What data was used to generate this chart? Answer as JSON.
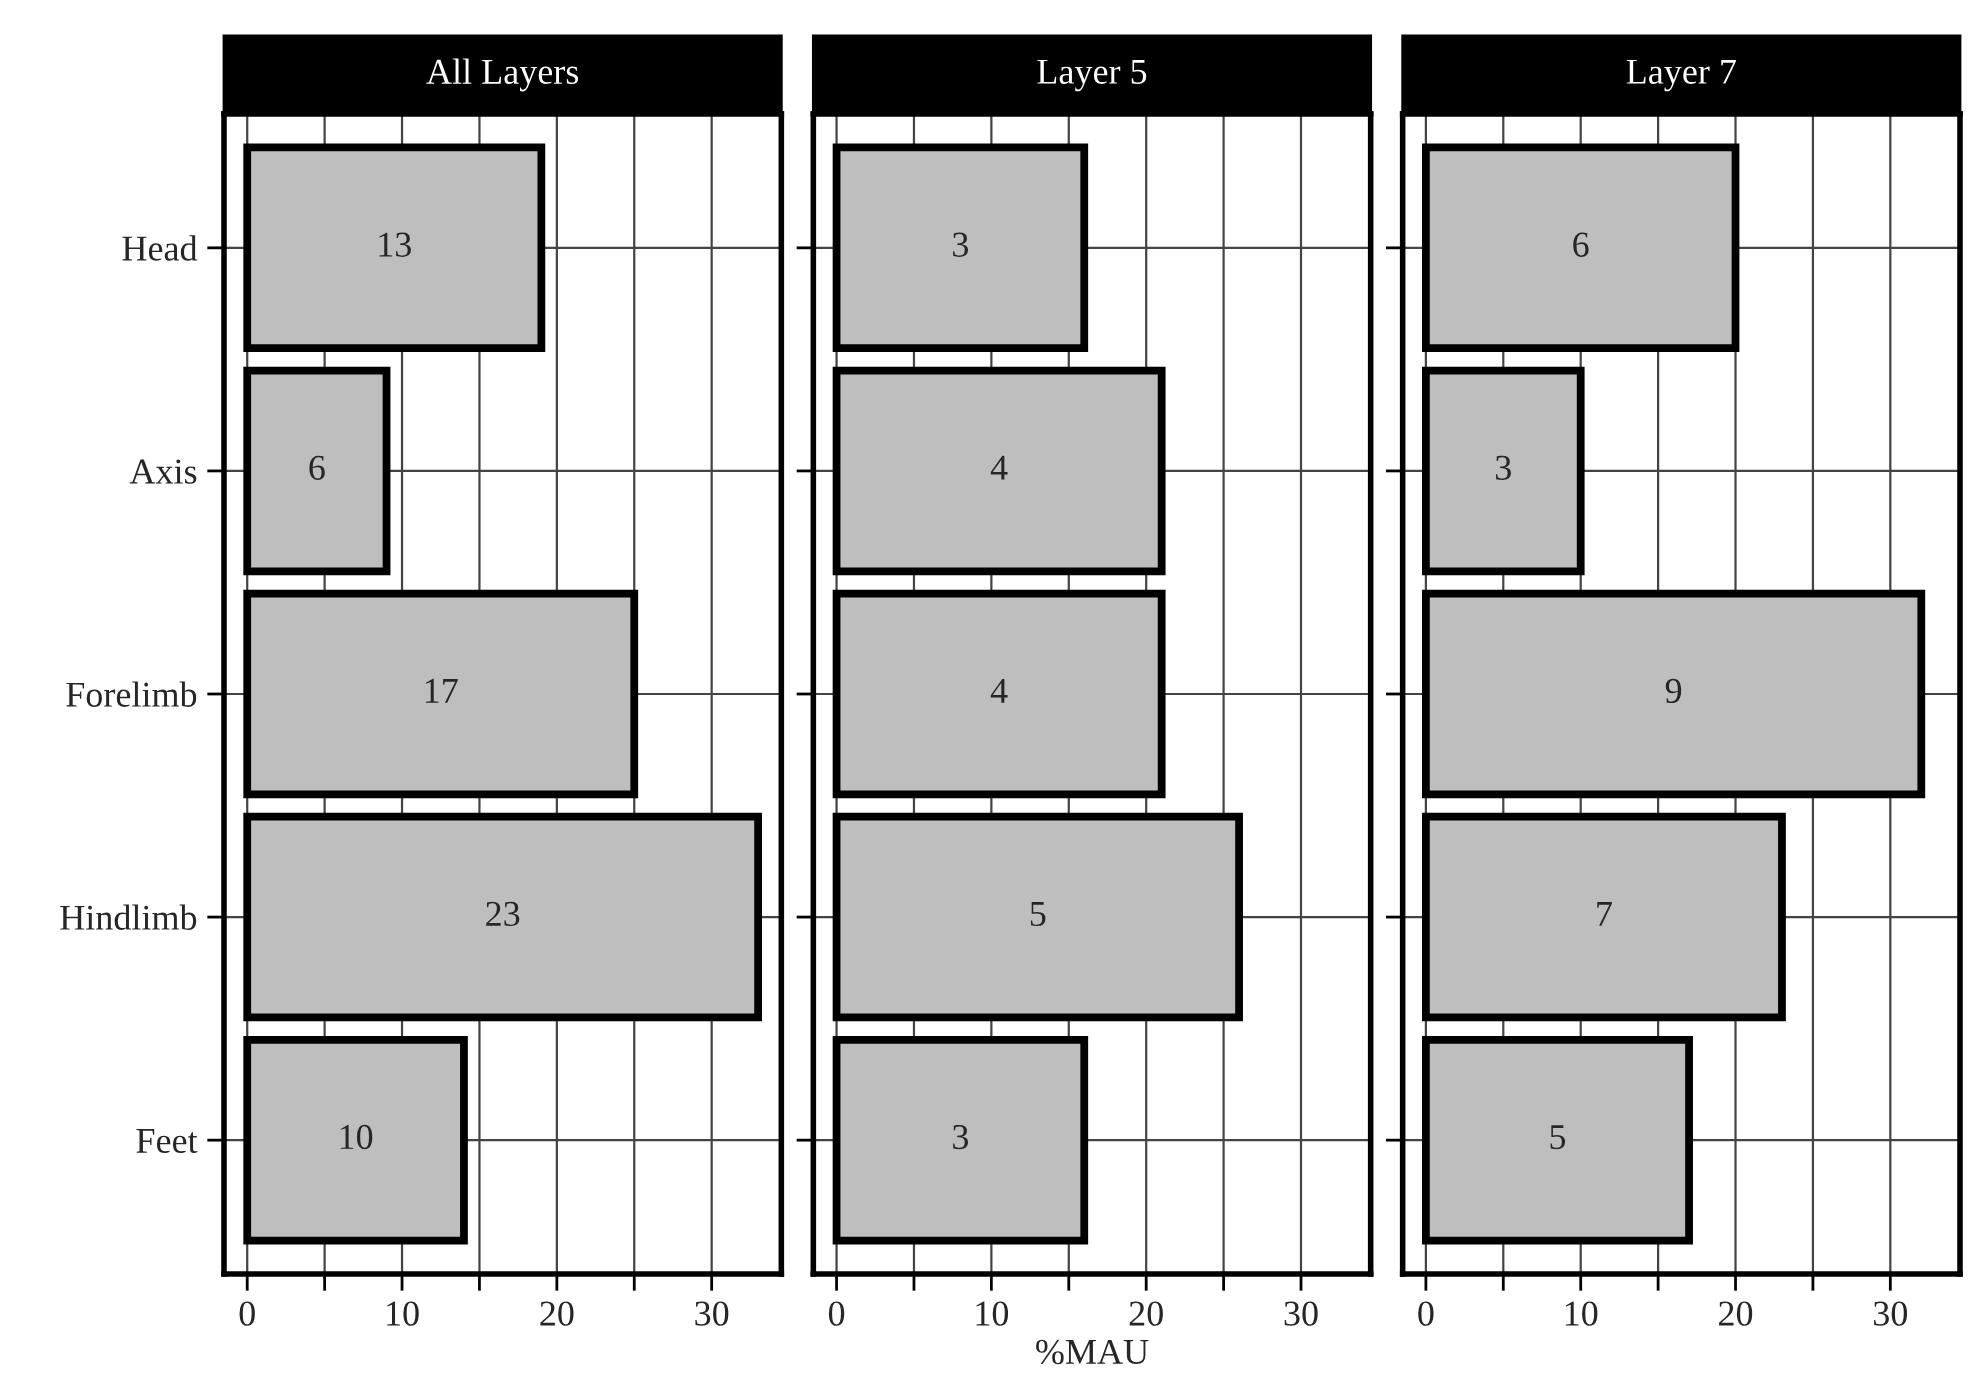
{
  "chart_data": [
    {
      "type": "bar",
      "orientation": "horizontal",
      "title": "All Layers",
      "categories": [
        "Head",
        "Axis",
        "Forelimb",
        "Hindlimb",
        "Feet"
      ],
      "values": [
        19,
        9,
        25,
        33,
        14
      ],
      "color": "#bebebe",
      "annotations": [
        {
          "text": "13",
          "x": 9.5,
          "y": "Head"
        },
        {
          "text": "6",
          "x": 4.5,
          "y": "Axis"
        },
        {
          "text": "17",
          "x": 12.5,
          "y": "Forelimb"
        },
        {
          "text": "23",
          "x": 16.5,
          "y": "Hindlimb"
        },
        {
          "text": "10",
          "x": 7,
          "y": "Feet"
        }
      ],
      "xlim": [
        -1.5,
        34.5
      ],
      "xticks": [
        0,
        {
          "value": 5,
          "label": null
        },
        10,
        {
          "value": 15,
          "label": null
        },
        20,
        {
          "value": 25,
          "label": null
        },
        30
      ],
      "grid": true
    },
    {
      "type": "bar",
      "orientation": "horizontal",
      "title": "Layer 5",
      "xlabel": "%MAU",
      "categories": [
        null,
        null,
        null,
        null,
        null
      ],
      "values": [
        16,
        21,
        21,
        26,
        16
      ],
      "color": "#bebebe",
      "annotations": [
        "3",
        "4",
        "4",
        "5",
        "3"
      ],
      "xlim": [
        -1.5,
        34.5
      ],
      "xticks": [
        0,
        {
          "value": 5,
          "label": null
        },
        10,
        {
          "value": 15,
          "label": null
        },
        20,
        {
          "value": 25,
          "label": null
        },
        30
      ],
      "grid": true,
      "tick_labels": "x"
    },
    {
      "type": "bar",
      "orientation": "horizontal",
      "title": "Layer 7",
      "categories": [
        null,
        null,
        null,
        null,
        null
      ],
      "values": [
        20,
        10,
        32,
        23,
        17
      ],
      "color": "#bebebe",
      "annotations": [
        "6",
        "3",
        "9",
        "7",
        "5"
      ],
      "xlim": [
        -1.5,
        34.5
      ],
      "xticks": [
        0,
        {
          "value": 5,
          "label": null
        },
        10,
        {
          "value": 15,
          "label": null
        },
        20,
        {
          "value": 25,
          "label": null
        },
        30
      ],
      "grid": true,
      "tick_labels": "x"
    }
  ]
}
